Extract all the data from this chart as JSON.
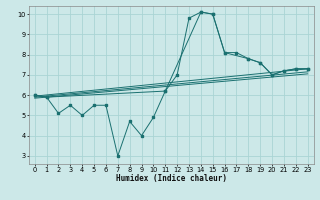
{
  "xlabel": "Humidex (Indice chaleur)",
  "background_color": "#cce8e8",
  "grid_color": "#aad4d4",
  "line_color": "#1a7070",
  "xlim": [
    -0.5,
    23.5
  ],
  "ylim": [
    2.6,
    10.4
  ],
  "xticks": [
    0,
    1,
    2,
    3,
    4,
    5,
    6,
    7,
    8,
    9,
    10,
    11,
    12,
    13,
    14,
    15,
    16,
    17,
    18,
    19,
    20,
    21,
    22,
    23
  ],
  "yticks": [
    3,
    4,
    5,
    6,
    7,
    8,
    9,
    10
  ],
  "line_main_x": [
    0,
    1,
    2,
    3,
    4,
    5,
    6,
    7,
    8,
    9,
    10,
    11,
    12,
    13,
    14,
    15,
    16,
    17,
    18,
    19,
    20,
    21,
    22,
    23
  ],
  "line_main_y": [
    6.0,
    5.9,
    5.1,
    5.5,
    5.0,
    5.5,
    5.5,
    3.0,
    4.7,
    4.0,
    4.9,
    6.2,
    7.0,
    9.8,
    10.1,
    10.0,
    8.1,
    8.1,
    7.8,
    7.6,
    7.0,
    7.2,
    7.3,
    7.3
  ],
  "line_env_x": [
    0,
    1,
    11,
    14,
    15,
    16,
    18,
    19,
    20,
    21,
    22,
    23
  ],
  "line_env_y": [
    6.0,
    5.9,
    6.2,
    10.1,
    10.0,
    8.1,
    7.8,
    7.6,
    7.0,
    7.2,
    7.3,
    7.3
  ],
  "diag_lines": [
    {
      "x": [
        0,
        23
      ],
      "y": [
        5.95,
        7.3
      ]
    },
    {
      "x": [
        0,
        23
      ],
      "y": [
        5.9,
        7.15
      ]
    },
    {
      "x": [
        0,
        23
      ],
      "y": [
        5.85,
        7.05
      ]
    }
  ]
}
